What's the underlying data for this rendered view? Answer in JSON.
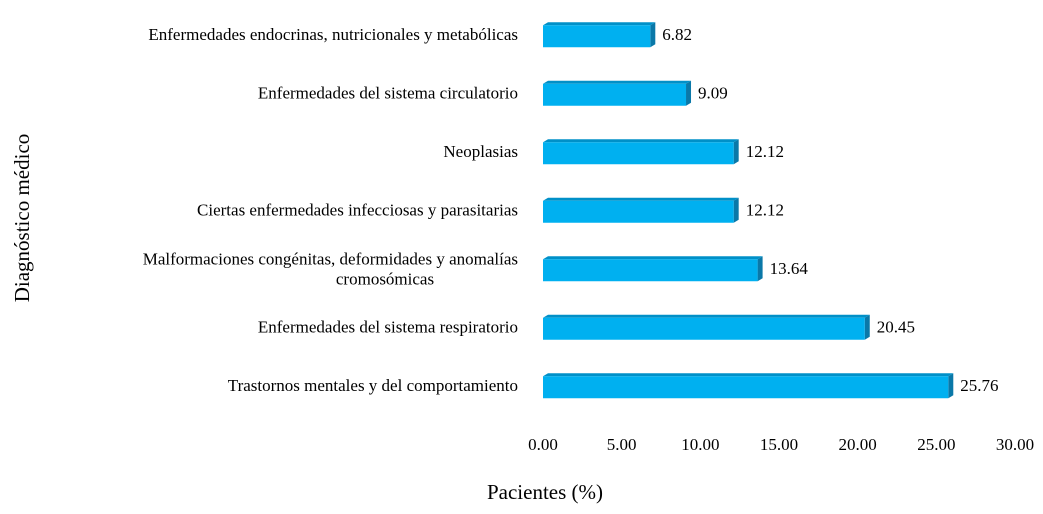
{
  "chart_data": {
    "type": "hbar",
    "categories": [
      "Enfermedades endocrinas, nutricionales y metabólicas",
      "Enfermedades del sistema circulatorio",
      "Neoplasias",
      "Ciertas enfermedades infecciosas y parasitarias",
      "Malformaciones congénitas, deformidades y anomalías\ncromosómicas",
      "Enfermedades del sistema respiratorio",
      "Trastornos mentales y del comportamiento"
    ],
    "values": [
      6.82,
      9.09,
      12.12,
      12.12,
      13.64,
      20.45,
      25.76
    ],
    "color": "#00b0f0",
    "xlim": [
      0,
      30
    ],
    "xticks": [
      {
        "value": 0,
        "label": "0.00"
      },
      {
        "value": 5,
        "label": "5.00"
      },
      {
        "value": 10,
        "label": "10.00"
      },
      {
        "value": 15,
        "label": "15.00"
      },
      {
        "value": 20,
        "label": "20.00"
      },
      {
        "value": 25,
        "label": "25.00"
      },
      {
        "value": 30,
        "label": "30.00"
      }
    ],
    "xlabel": "Pacientes (%)",
    "ylabel": "Diagnóstico médico"
  }
}
